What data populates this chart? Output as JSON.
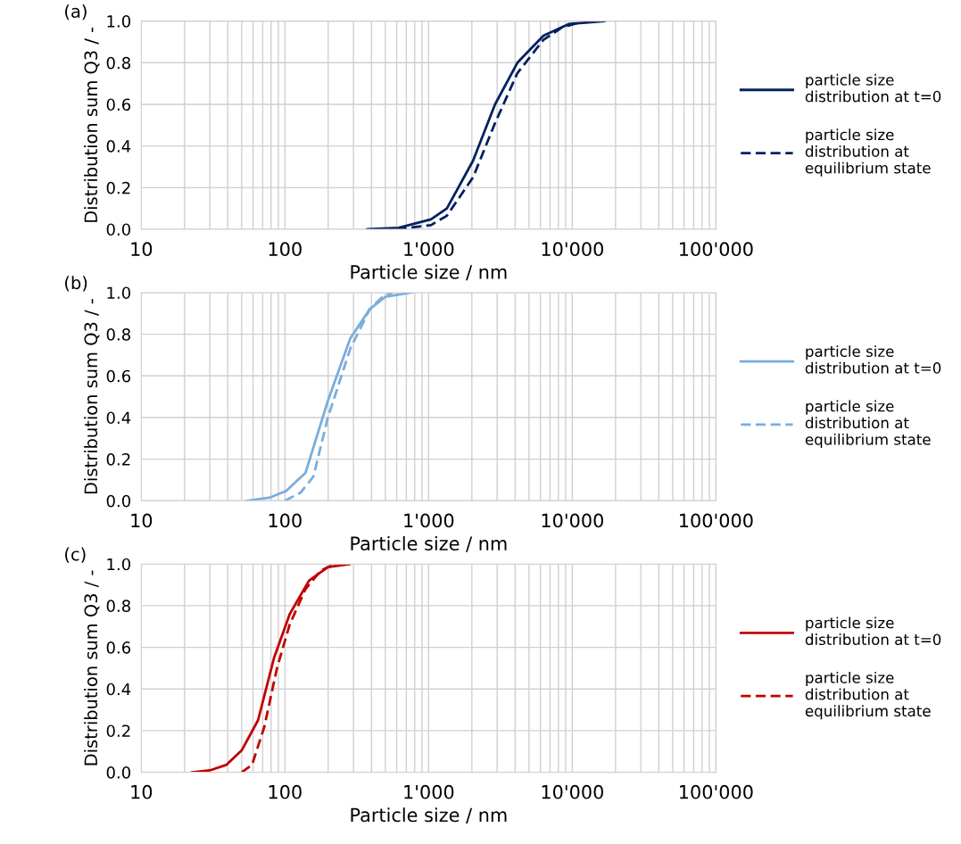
{
  "chart_data": [
    {
      "type": "line",
      "title": "(a)",
      "xlabel": "Particle size / nm",
      "ylabel": "Distribution sum Q3 / -",
      "log": "x",
      "grid": true,
      "legend": "right",
      "xlim": [
        10,
        100000
      ],
      "ylim": [
        0,
        1
      ],
      "xticks": [
        10,
        {
          "value": 20,
          "label": null
        },
        {
          "value": 30,
          "label": null
        },
        {
          "value": 40,
          "label": null
        },
        {
          "value": 50,
          "label": null
        },
        {
          "value": 60,
          "label": null
        },
        {
          "value": 70,
          "label": null
        },
        {
          "value": 80,
          "label": null
        },
        {
          "value": 90,
          "label": null
        },
        100,
        {
          "value": 200,
          "label": null
        },
        {
          "value": 300,
          "label": null
        },
        {
          "value": 400,
          "label": null
        },
        {
          "value": 500,
          "label": null
        },
        {
          "value": 600,
          "label": null
        },
        {
          "value": 700,
          "label": null
        },
        {
          "value": 800,
          "label": null
        },
        {
          "value": 900,
          "label": null
        },
        {
          "value": 1000,
          "label": "1'000"
        },
        {
          "value": 2000,
          "label": null
        },
        {
          "value": 3000,
          "label": null
        },
        {
          "value": 4000,
          "label": null
        },
        {
          "value": 5000,
          "label": null
        },
        {
          "value": 6000,
          "label": null
        },
        {
          "value": 7000,
          "label": null
        },
        {
          "value": 8000,
          "label": null
        },
        {
          "value": 9000,
          "label": null
        },
        {
          "value": 10000,
          "label": "10'000"
        },
        {
          "value": 20000,
          "label": null
        },
        {
          "value": 30000,
          "label": null
        },
        {
          "value": 40000,
          "label": null
        },
        {
          "value": 50000,
          "label": null
        },
        {
          "value": 60000,
          "label": null
        },
        {
          "value": 70000,
          "label": null
        },
        {
          "value": 80000,
          "label": null
        },
        {
          "value": 90000,
          "label": null
        },
        {
          "value": 100000,
          "label": "100'000"
        }
      ],
      "yticks": [
        {
          "value": 0,
          "label": "0.0"
        },
        {
          "value": 0.2,
          "label": "0.2"
        },
        {
          "value": 0.4,
          "label": "0.4"
        },
        {
          "value": 0.6,
          "label": "0.6"
        },
        {
          "value": 0.8,
          "label": "0.8"
        },
        {
          "value": 1,
          "label": "1.0"
        }
      ],
      "series": [
        {
          "name": "particle size\ndistribution at t=0",
          "color": "#002060",
          "line_style": "solid",
          "x": [
            375,
            617,
            1038,
            1340,
            2040,
            2900,
            4150,
            6300,
            9450,
            16700
          ],
          "values": [
            0,
            0.007,
            0.048,
            0.1,
            0.33,
            0.6,
            0.8,
            0.93,
            0.986,
            1.0
          ]
        },
        {
          "name": "particle size\ndistribution at\nequilibrium state",
          "color": "#002060",
          "line_style": "dashed",
          "x": [
            600,
            1038,
            1340,
            2040,
            2900,
            4150,
            6300,
            8500,
            11500
          ],
          "values": [
            0,
            0.02,
            0.065,
            0.25,
            0.51,
            0.75,
            0.91,
            0.97,
            0.995
          ]
        }
      ]
    },
    {
      "type": "line",
      "title": "(b)",
      "xlabel": "Particle size / nm",
      "ylabel": "Distribution sum Q3 / -",
      "log": "x",
      "grid": true,
      "legend": "right",
      "xlim": [
        10,
        100000
      ],
      "ylim": [
        0,
        1
      ],
      "xticks": [
        10,
        {
          "value": 20,
          "label": null
        },
        {
          "value": 30,
          "label": null
        },
        {
          "value": 40,
          "label": null
        },
        {
          "value": 50,
          "label": null
        },
        {
          "value": 60,
          "label": null
        },
        {
          "value": 70,
          "label": null
        },
        {
          "value": 80,
          "label": null
        },
        {
          "value": 90,
          "label": null
        },
        100,
        {
          "value": 200,
          "label": null
        },
        {
          "value": 300,
          "label": null
        },
        {
          "value": 400,
          "label": null
        },
        {
          "value": 500,
          "label": null
        },
        {
          "value": 600,
          "label": null
        },
        {
          "value": 700,
          "label": null
        },
        {
          "value": 800,
          "label": null
        },
        {
          "value": 900,
          "label": null
        },
        {
          "value": 1000,
          "label": "1'000"
        },
        {
          "value": 2000,
          "label": null
        },
        {
          "value": 3000,
          "label": null
        },
        {
          "value": 4000,
          "label": null
        },
        {
          "value": 5000,
          "label": null
        },
        {
          "value": 6000,
          "label": null
        },
        {
          "value": 7000,
          "label": null
        },
        {
          "value": 8000,
          "label": null
        },
        {
          "value": 9000,
          "label": null
        },
        {
          "value": 10000,
          "label": "10'000"
        },
        {
          "value": 20000,
          "label": null
        },
        {
          "value": 30000,
          "label": null
        },
        {
          "value": 40000,
          "label": null
        },
        {
          "value": 50000,
          "label": null
        },
        {
          "value": 60000,
          "label": null
        },
        {
          "value": 70000,
          "label": null
        },
        {
          "value": 80000,
          "label": null
        },
        {
          "value": 90000,
          "label": null
        },
        {
          "value": 100000,
          "label": "100'000"
        }
      ],
      "yticks": [
        {
          "value": 0,
          "label": "0.0"
        },
        {
          "value": 0.2,
          "label": "0.2"
        },
        {
          "value": 0.4,
          "label": "0.4"
        },
        {
          "value": 0.6,
          "label": "0.6"
        },
        {
          "value": 0.8,
          "label": "0.8"
        },
        {
          "value": 1,
          "label": "1.0"
        }
      ],
      "series": [
        {
          "name": "particle size\ndistribution at t=0",
          "color": "#7aaddb",
          "line_style": "solid",
          "x": [
            54,
            79,
            102,
            139,
            199,
            285,
            389,
            500,
            760
          ],
          "values": [
            0,
            0.016,
            0.047,
            0.134,
            0.48,
            0.78,
            0.92,
            0.98,
            1.0
          ]
        },
        {
          "name": "particle size\ndistribution at\nequilibrium state",
          "color": "#7aaddb",
          "line_style": "dashed",
          "x": [
            100,
            129,
            158,
            199,
            285,
            389,
            478,
            560
          ],
          "values": [
            0,
            0.04,
            0.117,
            0.4,
            0.73,
            0.92,
            0.98,
            1.0
          ]
        }
      ]
    },
    {
      "type": "line",
      "title": "(c)",
      "xlabel": "Particle size / nm",
      "ylabel": "Distribution sum Q3 / -",
      "log": "x",
      "grid": true,
      "legend": "right",
      "xlim": [
        10,
        100000
      ],
      "ylim": [
        0,
        1
      ],
      "xticks": [
        10,
        {
          "value": 20,
          "label": null
        },
        {
          "value": 30,
          "label": null
        },
        {
          "value": 40,
          "label": null
        },
        {
          "value": 50,
          "label": null
        },
        {
          "value": 60,
          "label": null
        },
        {
          "value": 70,
          "label": null
        },
        {
          "value": 80,
          "label": null
        },
        {
          "value": 90,
          "label": null
        },
        100,
        {
          "value": 200,
          "label": null
        },
        {
          "value": 300,
          "label": null
        },
        {
          "value": 400,
          "label": null
        },
        {
          "value": 500,
          "label": null
        },
        {
          "value": 600,
          "label": null
        },
        {
          "value": 700,
          "label": null
        },
        {
          "value": 800,
          "label": null
        },
        {
          "value": 900,
          "label": null
        },
        {
          "value": 1000,
          "label": "1'000"
        },
        {
          "value": 2000,
          "label": null
        },
        {
          "value": 3000,
          "label": null
        },
        {
          "value": 4000,
          "label": null
        },
        {
          "value": 5000,
          "label": null
        },
        {
          "value": 6000,
          "label": null
        },
        {
          "value": 7000,
          "label": null
        },
        {
          "value": 8000,
          "label": null
        },
        {
          "value": 9000,
          "label": null
        },
        {
          "value": 10000,
          "label": "10'000"
        },
        {
          "value": 20000,
          "label": null
        },
        {
          "value": 30000,
          "label": null
        },
        {
          "value": 40000,
          "label": null
        },
        {
          "value": 50000,
          "label": null
        },
        {
          "value": 60000,
          "label": null
        },
        {
          "value": 70000,
          "label": null
        },
        {
          "value": 80000,
          "label": null
        },
        {
          "value": 90000,
          "label": null
        },
        {
          "value": 100000,
          "label": "100'000"
        }
      ],
      "yticks": [
        {
          "value": 0,
          "label": "0.0"
        },
        {
          "value": 0.2,
          "label": "0.2"
        },
        {
          "value": 0.4,
          "label": "0.4"
        },
        {
          "value": 0.6,
          "label": "0.6"
        },
        {
          "value": 0.8,
          "label": "0.8"
        },
        {
          "value": 1,
          "label": "1.0"
        }
      ],
      "series": [
        {
          "name": "particle size\ndistribution at t=0",
          "color": "#c00000",
          "line_style": "solid",
          "x": [
            22.6,
            30,
            39,
            50,
            65,
            84,
            108,
            147,
            199,
            282
          ],
          "values": [
            0,
            0.009,
            0.035,
            0.105,
            0.25,
            0.55,
            0.76,
            0.92,
            0.986,
            1.0
          ]
        },
        {
          "name": "particle size\ndistribution at\nequilibrium state",
          "color": "#c00000",
          "line_style": "dashed",
          "x": [
            50,
            59,
            72,
            88,
            108,
            139,
            178,
            218
          ],
          "values": [
            0,
            0.035,
            0.22,
            0.5,
            0.71,
            0.88,
            0.97,
            0.997
          ]
        }
      ]
    }
  ]
}
